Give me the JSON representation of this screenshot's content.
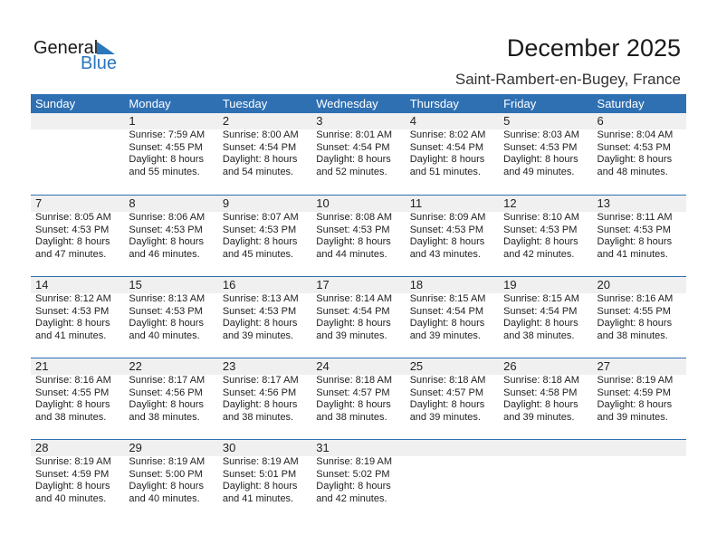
{
  "logo": {
    "text1": "General",
    "text2": "Blue"
  },
  "title": "December 2025",
  "location": "Saint-Rambert-en-Bugey, France",
  "colors": {
    "header": "#2f70b3",
    "date_strip": "#f0f0f0"
  },
  "weekdays": [
    "Sunday",
    "Monday",
    "Tuesday",
    "Wednesday",
    "Thursday",
    "Friday",
    "Saturday"
  ],
  "weeks": [
    [
      null,
      {
        "day": "1",
        "sunrise": "Sunrise: 7:59 AM",
        "sunset": "Sunset: 4:55 PM",
        "daylight": "Daylight: 8 hours",
        "minutes": "and 55 minutes."
      },
      {
        "day": "2",
        "sunrise": "Sunrise: 8:00 AM",
        "sunset": "Sunset: 4:54 PM",
        "daylight": "Daylight: 8 hours",
        "minutes": "and 54 minutes."
      },
      {
        "day": "3",
        "sunrise": "Sunrise: 8:01 AM",
        "sunset": "Sunset: 4:54 PM",
        "daylight": "Daylight: 8 hours",
        "minutes": "and 52 minutes."
      },
      {
        "day": "4",
        "sunrise": "Sunrise: 8:02 AM",
        "sunset": "Sunset: 4:54 PM",
        "daylight": "Daylight: 8 hours",
        "minutes": "and 51 minutes."
      },
      {
        "day": "5",
        "sunrise": "Sunrise: 8:03 AM",
        "sunset": "Sunset: 4:53 PM",
        "daylight": "Daylight: 8 hours",
        "minutes": "and 49 minutes."
      },
      {
        "day": "6",
        "sunrise": "Sunrise: 8:04 AM",
        "sunset": "Sunset: 4:53 PM",
        "daylight": "Daylight: 8 hours",
        "minutes": "and 48 minutes."
      }
    ],
    [
      {
        "day": "7",
        "sunrise": "Sunrise: 8:05 AM",
        "sunset": "Sunset: 4:53 PM",
        "daylight": "Daylight: 8 hours",
        "minutes": "and 47 minutes."
      },
      {
        "day": "8",
        "sunrise": "Sunrise: 8:06 AM",
        "sunset": "Sunset: 4:53 PM",
        "daylight": "Daylight: 8 hours",
        "minutes": "and 46 minutes."
      },
      {
        "day": "9",
        "sunrise": "Sunrise: 8:07 AM",
        "sunset": "Sunset: 4:53 PM",
        "daylight": "Daylight: 8 hours",
        "minutes": "and 45 minutes."
      },
      {
        "day": "10",
        "sunrise": "Sunrise: 8:08 AM",
        "sunset": "Sunset: 4:53 PM",
        "daylight": "Daylight: 8 hours",
        "minutes": "and 44 minutes."
      },
      {
        "day": "11",
        "sunrise": "Sunrise: 8:09 AM",
        "sunset": "Sunset: 4:53 PM",
        "daylight": "Daylight: 8 hours",
        "minutes": "and 43 minutes."
      },
      {
        "day": "12",
        "sunrise": "Sunrise: 8:10 AM",
        "sunset": "Sunset: 4:53 PM",
        "daylight": "Daylight: 8 hours",
        "minutes": "and 42 minutes."
      },
      {
        "day": "13",
        "sunrise": "Sunrise: 8:11 AM",
        "sunset": "Sunset: 4:53 PM",
        "daylight": "Daylight: 8 hours",
        "minutes": "and 41 minutes."
      }
    ],
    [
      {
        "day": "14",
        "sunrise": "Sunrise: 8:12 AM",
        "sunset": "Sunset: 4:53 PM",
        "daylight": "Daylight: 8 hours",
        "minutes": "and 41 minutes."
      },
      {
        "day": "15",
        "sunrise": "Sunrise: 8:13 AM",
        "sunset": "Sunset: 4:53 PM",
        "daylight": "Daylight: 8 hours",
        "minutes": "and 40 minutes."
      },
      {
        "day": "16",
        "sunrise": "Sunrise: 8:13 AM",
        "sunset": "Sunset: 4:53 PM",
        "daylight": "Daylight: 8 hours",
        "minutes": "and 39 minutes."
      },
      {
        "day": "17",
        "sunrise": "Sunrise: 8:14 AM",
        "sunset": "Sunset: 4:54 PM",
        "daylight": "Daylight: 8 hours",
        "minutes": "and 39 minutes."
      },
      {
        "day": "18",
        "sunrise": "Sunrise: 8:15 AM",
        "sunset": "Sunset: 4:54 PM",
        "daylight": "Daylight: 8 hours",
        "minutes": "and 39 minutes."
      },
      {
        "day": "19",
        "sunrise": "Sunrise: 8:15 AM",
        "sunset": "Sunset: 4:54 PM",
        "daylight": "Daylight: 8 hours",
        "minutes": "and 38 minutes."
      },
      {
        "day": "20",
        "sunrise": "Sunrise: 8:16 AM",
        "sunset": "Sunset: 4:55 PM",
        "daylight": "Daylight: 8 hours",
        "minutes": "and 38 minutes."
      }
    ],
    [
      {
        "day": "21",
        "sunrise": "Sunrise: 8:16 AM",
        "sunset": "Sunset: 4:55 PM",
        "daylight": "Daylight: 8 hours",
        "minutes": "and 38 minutes."
      },
      {
        "day": "22",
        "sunrise": "Sunrise: 8:17 AM",
        "sunset": "Sunset: 4:56 PM",
        "daylight": "Daylight: 8 hours",
        "minutes": "and 38 minutes."
      },
      {
        "day": "23",
        "sunrise": "Sunrise: 8:17 AM",
        "sunset": "Sunset: 4:56 PM",
        "daylight": "Daylight: 8 hours",
        "minutes": "and 38 minutes."
      },
      {
        "day": "24",
        "sunrise": "Sunrise: 8:18 AM",
        "sunset": "Sunset: 4:57 PM",
        "daylight": "Daylight: 8 hours",
        "minutes": "and 38 minutes."
      },
      {
        "day": "25",
        "sunrise": "Sunrise: 8:18 AM",
        "sunset": "Sunset: 4:57 PM",
        "daylight": "Daylight: 8 hours",
        "minutes": "and 39 minutes."
      },
      {
        "day": "26",
        "sunrise": "Sunrise: 8:18 AM",
        "sunset": "Sunset: 4:58 PM",
        "daylight": "Daylight: 8 hours",
        "minutes": "and 39 minutes."
      },
      {
        "day": "27",
        "sunrise": "Sunrise: 8:19 AM",
        "sunset": "Sunset: 4:59 PM",
        "daylight": "Daylight: 8 hours",
        "minutes": "and 39 minutes."
      }
    ],
    [
      {
        "day": "28",
        "sunrise": "Sunrise: 8:19 AM",
        "sunset": "Sunset: 4:59 PM",
        "daylight": "Daylight: 8 hours",
        "minutes": "and 40 minutes."
      },
      {
        "day": "29",
        "sunrise": "Sunrise: 8:19 AM",
        "sunset": "Sunset: 5:00 PM",
        "daylight": "Daylight: 8 hours",
        "minutes": "and 40 minutes."
      },
      {
        "day": "30",
        "sunrise": "Sunrise: 8:19 AM",
        "sunset": "Sunset: 5:01 PM",
        "daylight": "Daylight: 8 hours",
        "minutes": "and 41 minutes."
      },
      {
        "day": "31",
        "sunrise": "Sunrise: 8:19 AM",
        "sunset": "Sunset: 5:02 PM",
        "daylight": "Daylight: 8 hours",
        "minutes": "and 42 minutes."
      },
      null,
      null,
      null
    ]
  ]
}
